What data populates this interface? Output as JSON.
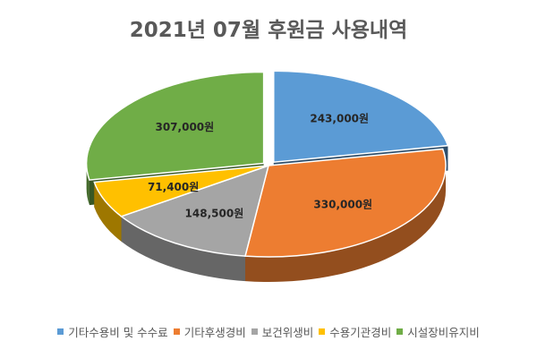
{
  "chart_data": {
    "type": "pie",
    "title": "2021년 07월 후원금 사용내역",
    "categories": [
      "기타수용비 및 수수료",
      "기타후생경비",
      "보건위생비",
      "수용기관경비",
      "시설장비유지비"
    ],
    "values": [
      243000,
      330000,
      148500,
      71400,
      307000
    ],
    "data_labels": [
      "243,000원",
      "330,000원",
      "148,500원",
      "71,400원",
      "307,000원"
    ],
    "colors": [
      "#5B9BD5",
      "#ED7D31",
      "#A5A5A5",
      "#FFC000",
      "#70AD47"
    ],
    "style": "3d-exploded",
    "legend_position": "bottom"
  }
}
